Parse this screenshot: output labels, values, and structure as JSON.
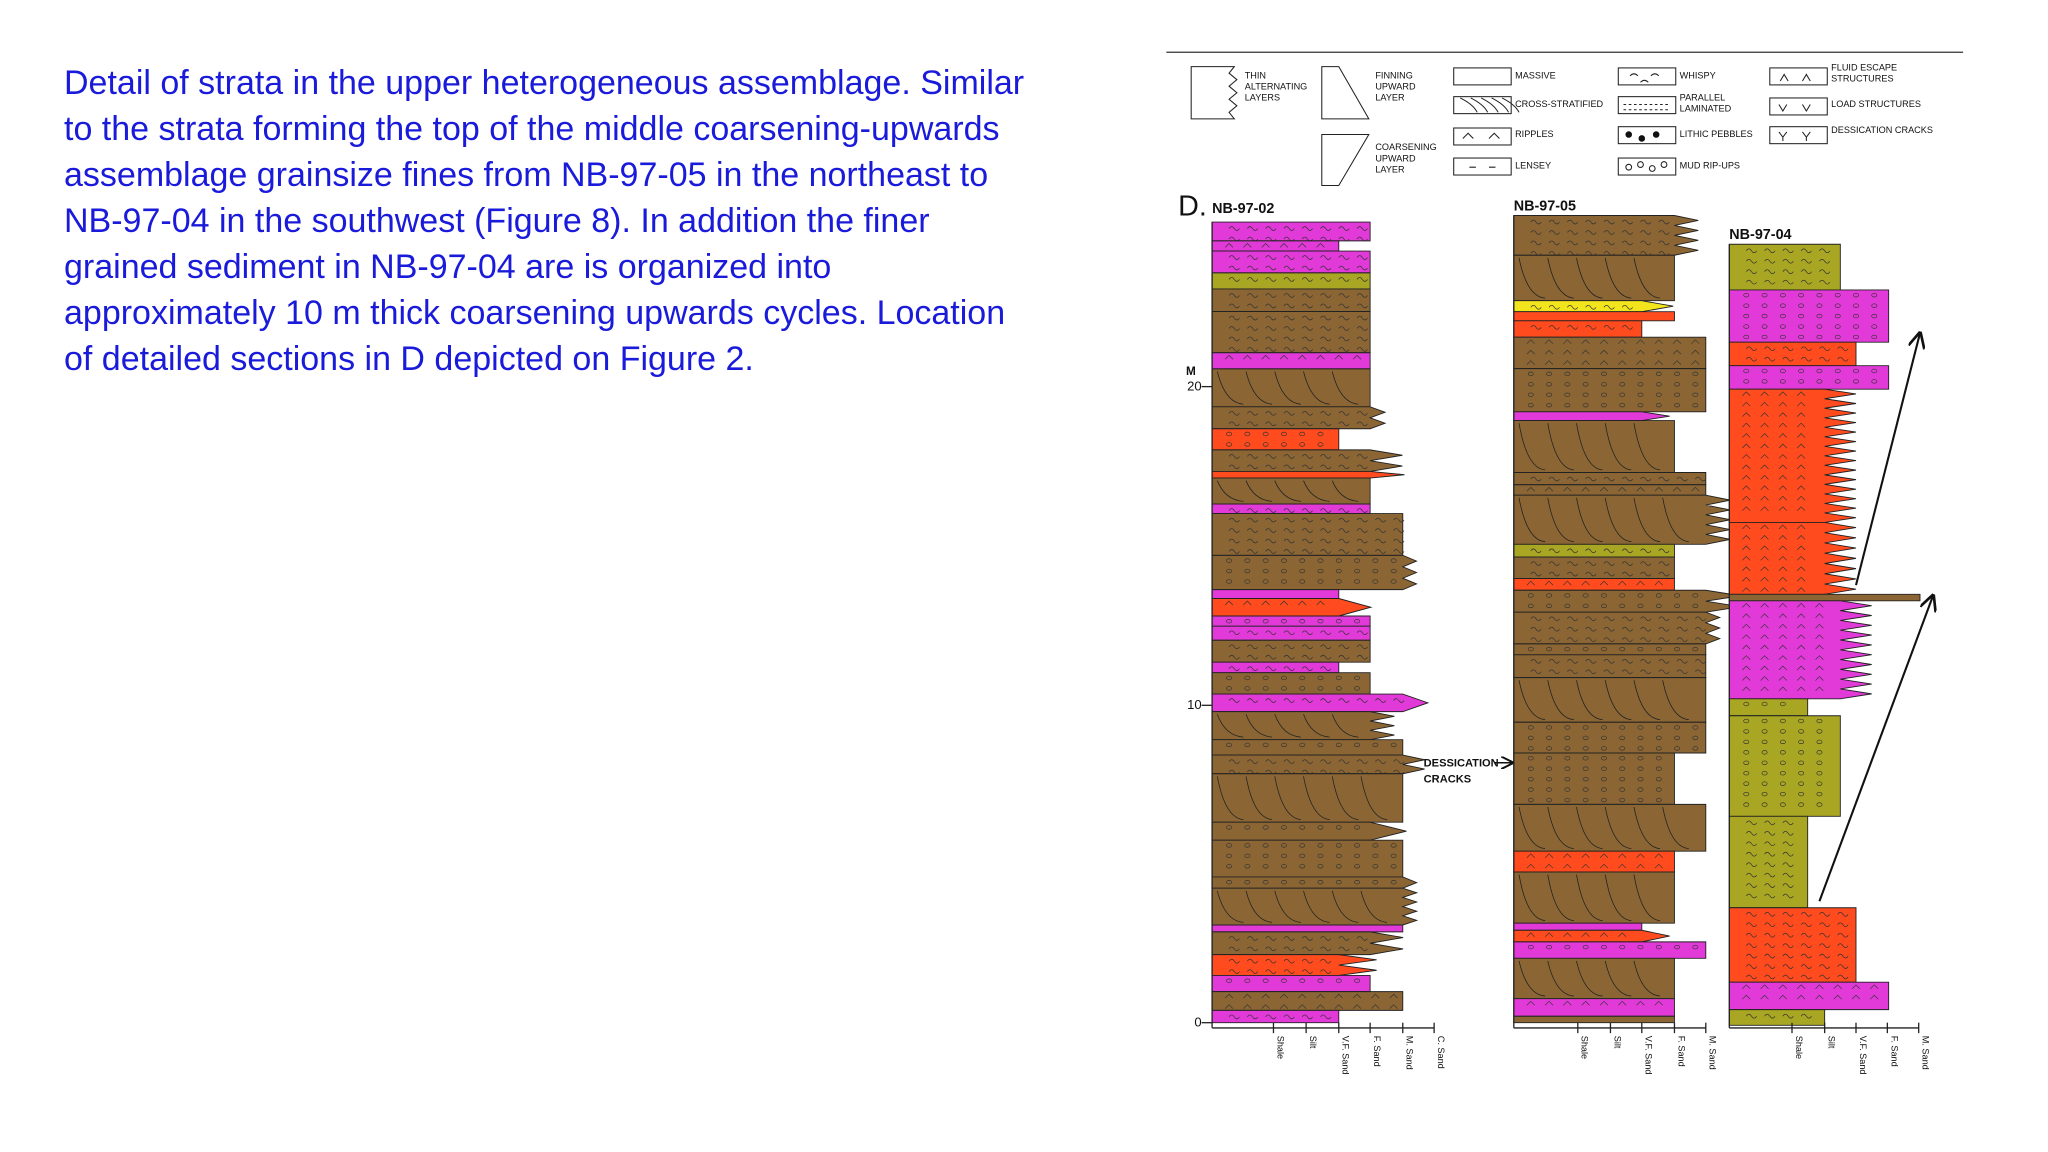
{
  "text": {
    "lines": [
      "Detail of strata in the upper heterogeneous assemblage. Similar",
      "to the strata forming the top of the middle coarsening-upwards",
      "assemblage grainsize fines from NB-97-05 in the northeast to",
      "NB-97-04 in the southwest (Figure 8). In addition the finer",
      "grained sediment in NB-97-04 are is organized into",
      "approximately 10 m thick coarsening upwards cycles. Location",
      "of detailed sections in D depicted on Figure 2."
    ]
  },
  "figure": {
    "legend": [
      {
        "lines": [
          "THIN",
          "ALTERNATING",
          "LAYERS"
        ]
      },
      {
        "lines": [
          "FINNING",
          "UPWARD",
          "LAYER"
        ]
      },
      {
        "lines": [
          "COARSENING",
          "UPWARD",
          "LAYER"
        ]
      },
      {
        "lines": [
          "MASSIVE"
        ]
      },
      {
        "lines": [
          "CROSS-STRATIFIED"
        ]
      },
      {
        "lines": [
          "RIPPLES"
        ]
      },
      {
        "lines": [
          "LENSEY"
        ]
      },
      {
        "lines": [
          "WHISPY"
        ]
      },
      {
        "lines": [
          "PARALLEL",
          "LAMINATED"
        ]
      },
      {
        "lines": [
          "LITHIC PEBBLES"
        ]
      },
      {
        "lines": [
          "MUD RIP-UPS"
        ]
      },
      {
        "lines": [
          "FLUID ESCAPE",
          "STRUCTURES"
        ]
      },
      {
        "lines": [
          "LOAD STRUCTURES"
        ]
      },
      {
        "lines": [
          "DESSICATION CRACKS"
        ]
      }
    ],
    "panel_label": "D.",
    "scale": {
      "unit": "M",
      "ticks": [
        "20",
        "10",
        "0"
      ]
    },
    "sections": [
      {
        "name": "NB-97-02",
        "grain_sizes": [
          "Shale",
          "Silt",
          "V.F. Sand",
          "F. Sand",
          "M. Sand",
          "C. Sand"
        ]
      },
      {
        "name": "NB-97-05",
        "grain_sizes": [
          "Shale",
          "Silt",
          "V.F. Sand",
          "F. Sand",
          "M. Sand"
        ]
      },
      {
        "name": "NB-97-04",
        "grain_sizes": [
          "Shale",
          "Silt",
          "V.F. Sand",
          "F. Sand",
          "M. Sand"
        ]
      }
    ],
    "annotation": {
      "lines": [
        "DESSICATION",
        "CRACKS"
      ]
    }
  }
}
